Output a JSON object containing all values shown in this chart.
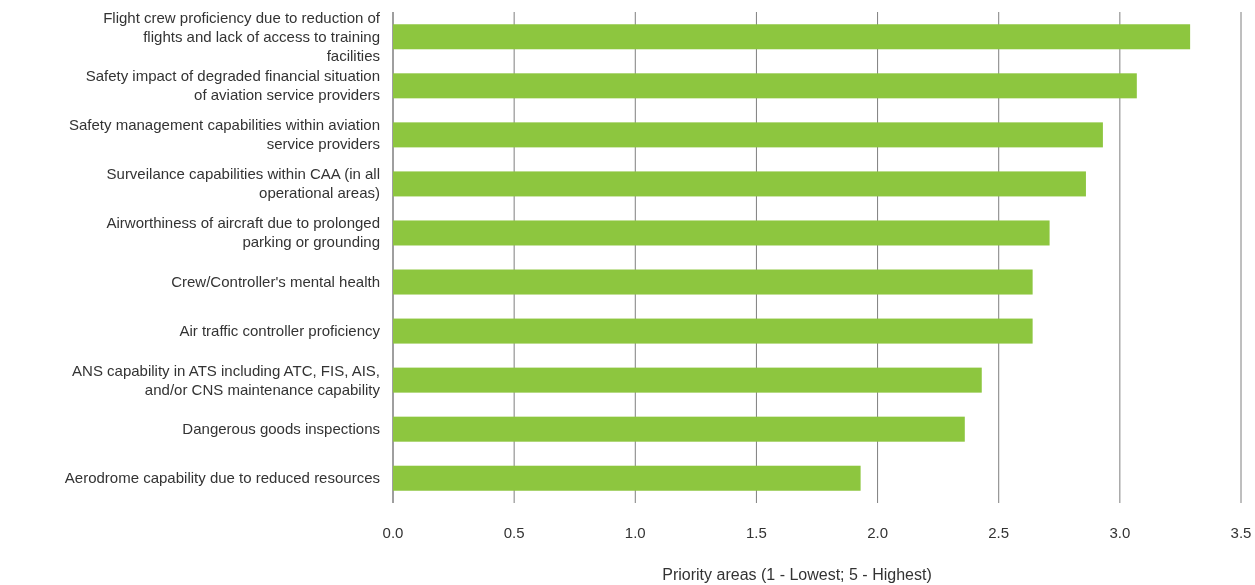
{
  "chart_data": {
    "type": "bar",
    "orientation": "horizontal",
    "xlabel": "Priority areas (1 - Lowest; 5 - Highest)",
    "categories": [
      "Flight crew proficiency due to reduction of flights and lack of access to training facilities",
      "Safety impact of degraded financial situation of aviation service providers",
      "Safety management capabilities within aviation service providers",
      "Surveilance capabilities within CAA (in all operational areas)",
      "Airworthiness of aircraft due to prolonged parking or grounding",
      "Crew/Controller's mental health",
      "Air traffic controller proficiency",
      "ANS capability in ATS including ATC, FIS, AIS, and/or CNS maintenance capability",
      "Dangerous goods inspections",
      "Aerodrome capability due to reduced resources"
    ],
    "values": [
      3.29,
      3.07,
      2.93,
      2.86,
      2.71,
      2.64,
      2.64,
      2.43,
      2.36,
      1.93
    ],
    "color": "#8dc63f",
    "xlim": [
      0,
      3.5
    ],
    "xticks": [
      {
        "value": 0,
        "label": "0.0"
      },
      {
        "value": 0.5,
        "label": "0.5"
      },
      {
        "value": 1,
        "label": "1.0"
      },
      {
        "value": 1.5,
        "label": "1.5"
      },
      {
        "value": 2,
        "label": "2.0"
      },
      {
        "value": 2.5,
        "label": "2.5"
      },
      {
        "value": 3,
        "label": "3.0"
      },
      {
        "value": 3.5,
        "label": "3.5"
      }
    ],
    "grid": "x"
  }
}
